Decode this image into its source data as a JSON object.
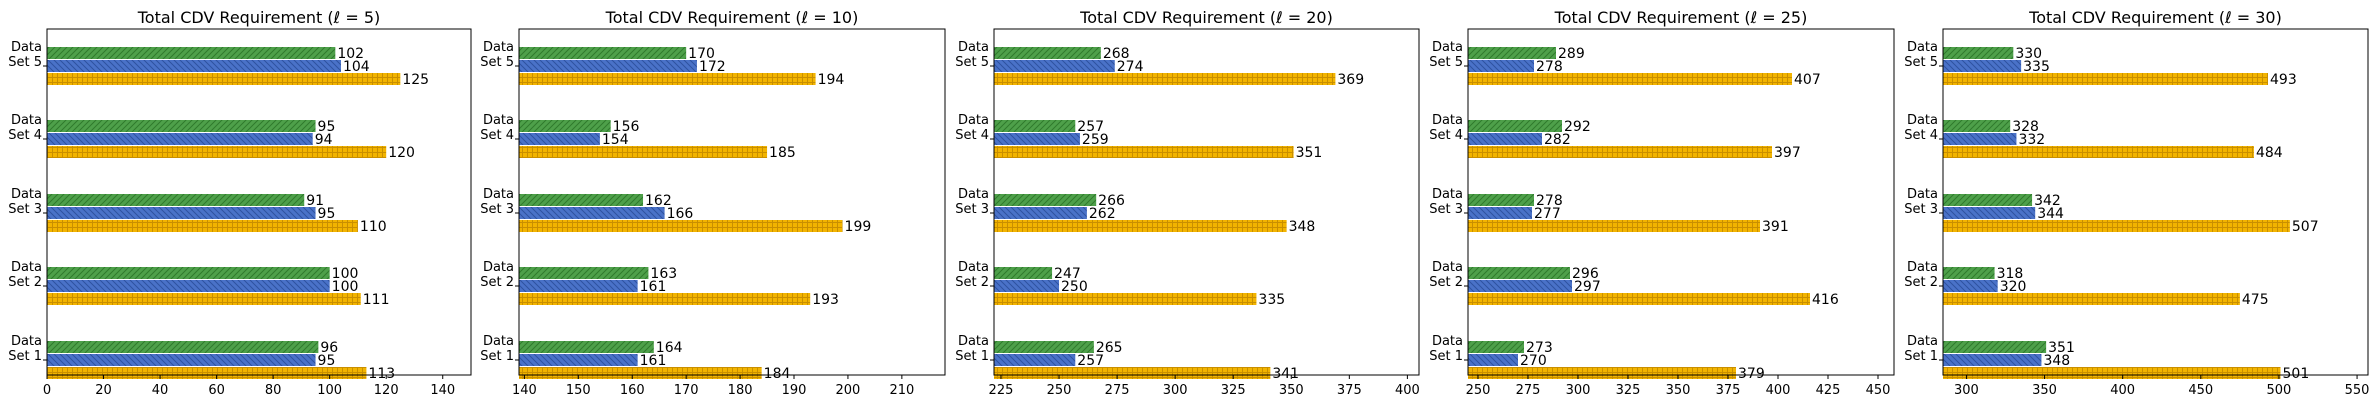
{
  "chart_data": [
    {
      "type": "bar",
      "orientation": "horizontal",
      "title": "Total CDV Requirement (ℓ = 5)",
      "categories": [
        "Data Set 1",
        "Data Set 2",
        "Data Set 3",
        "Data Set 4",
        "Data Set 5"
      ],
      "series": [
        {
          "name": "series-green",
          "values": [
            96,
            100,
            91,
            95,
            102
          ]
        },
        {
          "name": "series-blue",
          "values": [
            95,
            100,
            95,
            94,
            104
          ]
        },
        {
          "name": "series-yellow",
          "values": [
            113,
            111,
            110,
            120,
            125
          ]
        }
      ],
      "xlim": [
        0,
        150
      ],
      "xticks": [
        0,
        20,
        40,
        60,
        80,
        100,
        120,
        140
      ],
      "xlabel": "",
      "ylabel": ""
    },
    {
      "type": "bar",
      "orientation": "horizontal",
      "title": "Total CDV Requirement (ℓ = 10)",
      "categories": [
        "Data Set 1",
        "Data Set 2",
        "Data Set 3",
        "Data Set 4",
        "Data Set 5"
      ],
      "series": [
        {
          "name": "series-green",
          "values": [
            164,
            163,
            162,
            156,
            170
          ]
        },
        {
          "name": "series-blue",
          "values": [
            161,
            161,
            166,
            154,
            172
          ]
        },
        {
          "name": "series-yellow",
          "values": [
            184,
            193,
            199,
            185,
            194
          ]
        }
      ],
      "xlim": [
        139,
        218
      ],
      "xticks": [
        140,
        150,
        160,
        170,
        180,
        190,
        200,
        210
      ],
      "xlabel": "",
      "ylabel": ""
    },
    {
      "type": "bar",
      "orientation": "horizontal",
      "title": "Total CDV Requirement (ℓ = 20)",
      "categories": [
        "Data Set 1",
        "Data Set 2",
        "Data Set 3",
        "Data Set 4",
        "Data Set 5"
      ],
      "series": [
        {
          "name": "series-green",
          "values": [
            265,
            247,
            266,
            257,
            268
          ]
        },
        {
          "name": "series-blue",
          "values": [
            257,
            250,
            262,
            259,
            274
          ]
        },
        {
          "name": "series-yellow",
          "values": [
            341,
            335,
            348,
            351,
            369
          ]
        }
      ],
      "xlim": [
        222,
        405
      ],
      "xticks": [
        225,
        250,
        275,
        300,
        325,
        350,
        375,
        400
      ],
      "xlabel": "",
      "ylabel": ""
    },
    {
      "type": "bar",
      "orientation": "horizontal",
      "title": "Total CDV Requirement (ℓ = 25)",
      "categories": [
        "Data Set 1",
        "Data Set 2",
        "Data Set 3",
        "Data Set 4",
        "Data Set 5"
      ],
      "series": [
        {
          "name": "series-green",
          "values": [
            273,
            296,
            278,
            292,
            289
          ]
        },
        {
          "name": "series-blue",
          "values": [
            270,
            297,
            277,
            282,
            278
          ]
        },
        {
          "name": "series-yellow",
          "values": [
            379,
            416,
            391,
            397,
            407
          ]
        }
      ],
      "xlim": [
        245,
        458
      ],
      "xticks": [
        250,
        275,
        300,
        325,
        350,
        375,
        400,
        425,
        450
      ],
      "xlabel": "",
      "ylabel": ""
    },
    {
      "type": "bar",
      "orientation": "horizontal",
      "title": "Total CDV Requirement (ℓ = 30)",
      "categories": [
        "Data Set 1",
        "Data Set 2",
        "Data Set 3",
        "Data Set 4",
        "Data Set 5"
      ],
      "series": [
        {
          "name": "series-green",
          "values": [
            351,
            318,
            342,
            328,
            330
          ]
        },
        {
          "name": "series-blue",
          "values": [
            348,
            320,
            344,
            332,
            335
          ]
        },
        {
          "name": "series-yellow",
          "values": [
            501,
            475,
            507,
            484,
            493
          ]
        }
      ],
      "xlim": [
        285,
        557
      ],
      "xticks": [
        300,
        350,
        400,
        450,
        500,
        550
      ],
      "xlabel": "",
      "ylabel": ""
    }
  ],
  "colors": {
    "green": "#4ea04a",
    "blue": "#4a72c8",
    "yellow": "#f2b400"
  }
}
